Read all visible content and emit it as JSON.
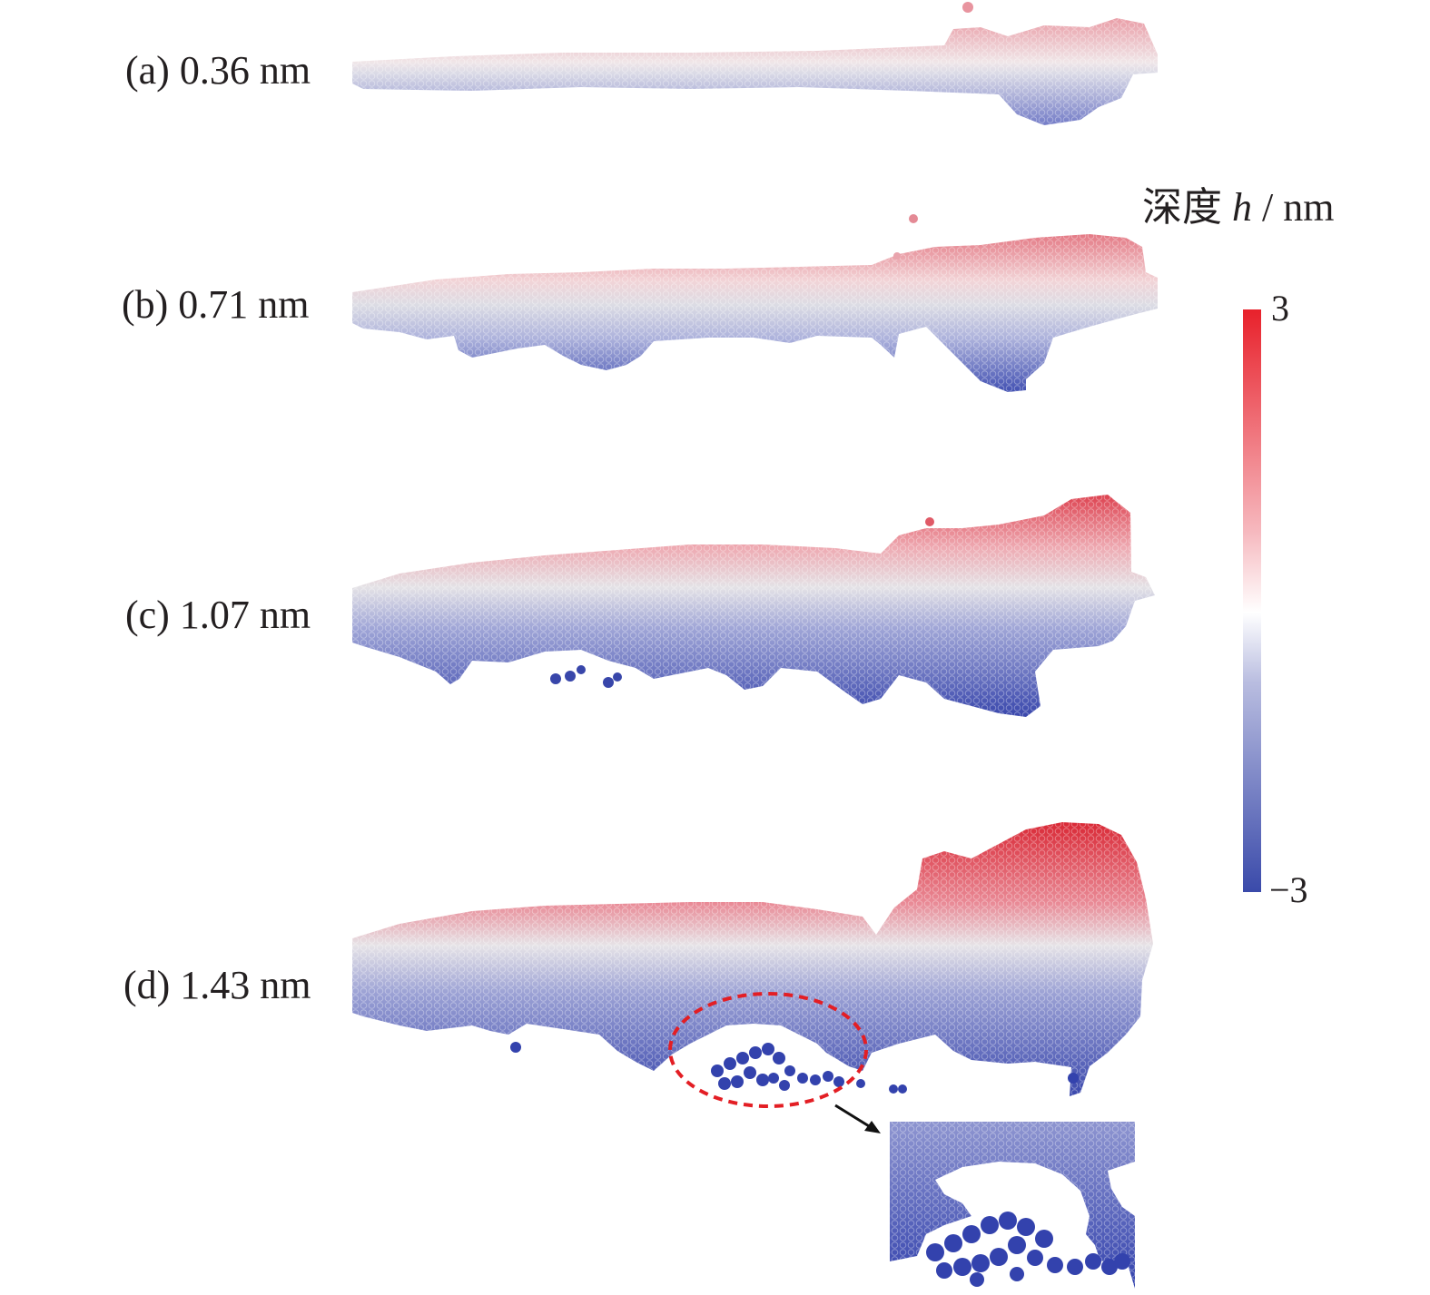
{
  "panels": [
    {
      "id": "a",
      "label": "(a) 0.36 nm"
    },
    {
      "id": "b",
      "label": "(b) 0.71 nm"
    },
    {
      "id": "c",
      "label": "(c) 1.07 nm"
    },
    {
      "id": "d",
      "label": "(d) 1.43 nm"
    }
  ],
  "colorbar": {
    "title_text": "深度 ",
    "title_var": "h",
    "title_unit": " / nm",
    "max_label": "3",
    "min_label": "−3",
    "colors": {
      "max": "#e8212b",
      "mid": "#ffffff",
      "min": "#3a4aaa"
    }
  },
  "annotation": {
    "highlight_color": "#e31e24",
    "style": "dashed-ellipse",
    "inset": "zoomed view"
  }
}
